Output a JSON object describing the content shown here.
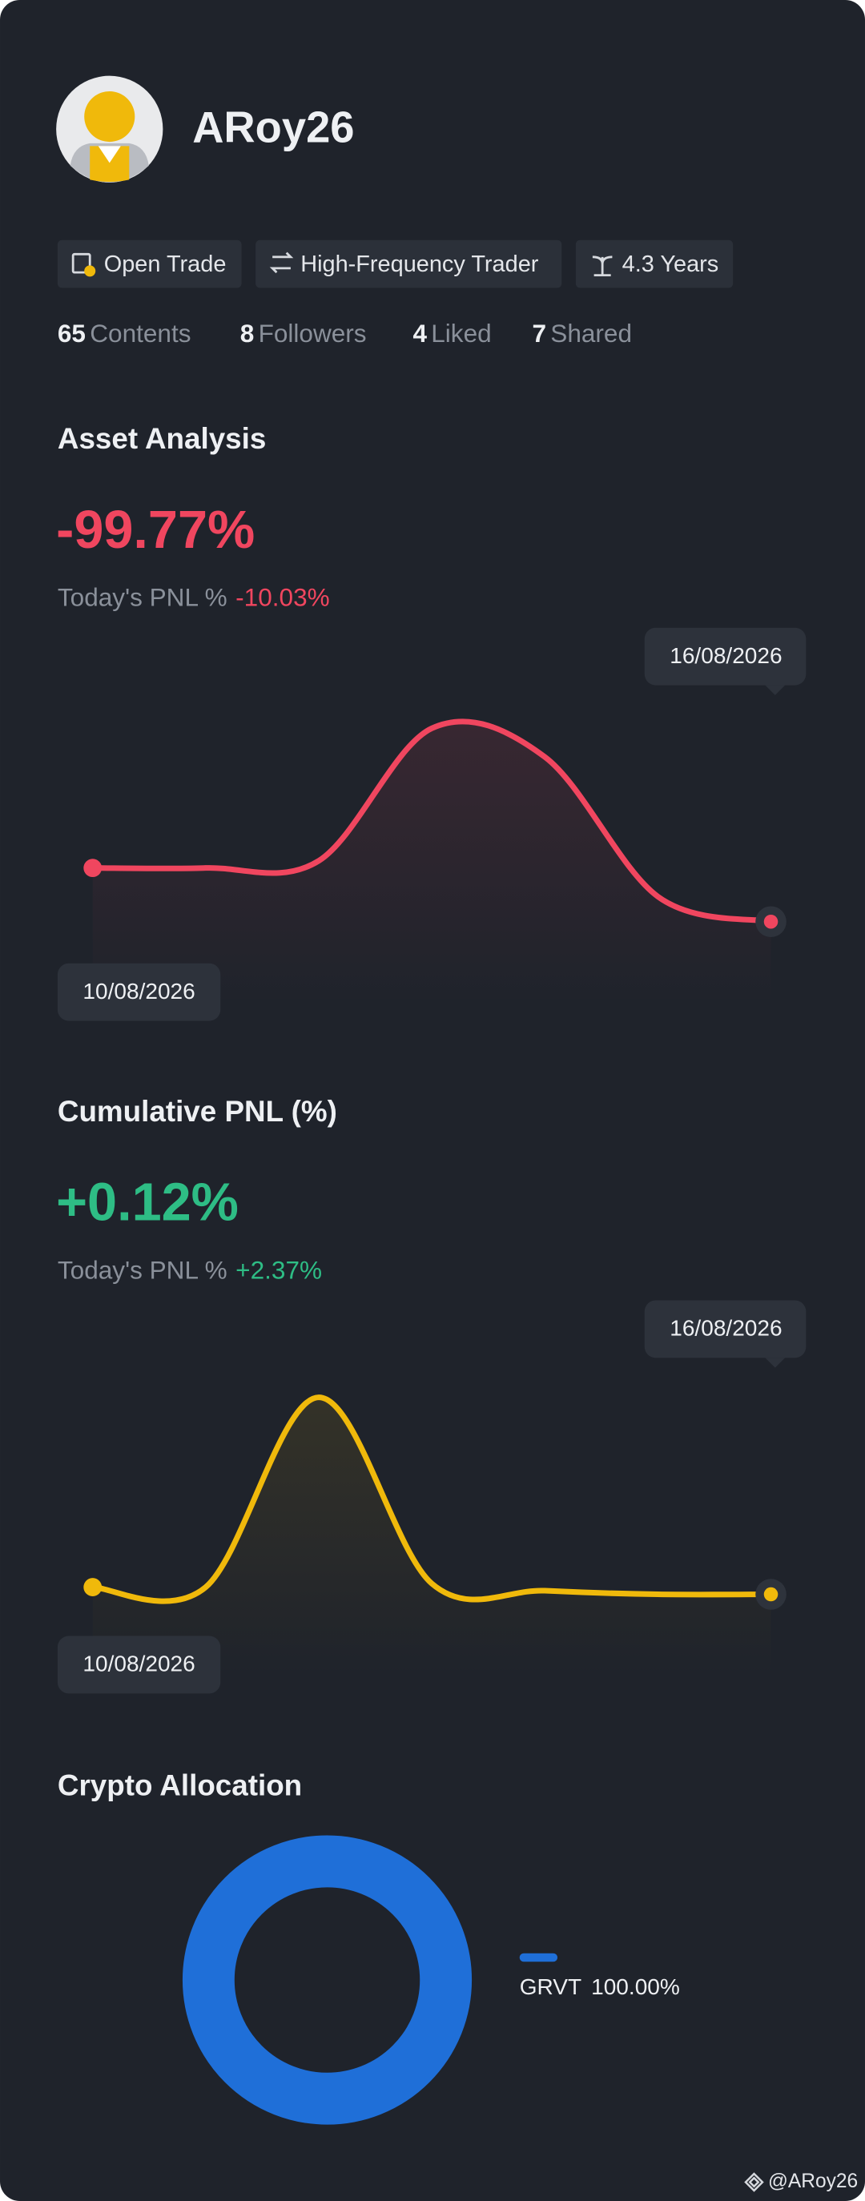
{
  "profile": {
    "username": "ARoy26",
    "tags": [
      "Open Trade",
      "High-Frequency Trader",
      "4.3 Years"
    ],
    "stats": [
      {
        "count": "65",
        "label": "Contents"
      },
      {
        "count": "8",
        "label": "Followers"
      },
      {
        "count": "4",
        "label": "Liked"
      },
      {
        "count": "7",
        "label": "Shared"
      }
    ]
  },
  "chart_data": [
    {
      "type": "line",
      "title": "Asset Analysis",
      "headline": "-99.77%",
      "headline_color": "#f0465f",
      "subtitle_label": "Today's PNL %",
      "subtitle_value": "-10.03%",
      "x": [
        "10/08/2026",
        null,
        null,
        null,
        null,
        null,
        "16/08/2026"
      ],
      "series": [
        {
          "color": "#f0465f",
          "values": [
            38,
            38,
            40,
            77,
            69,
            30,
            23
          ]
        }
      ],
      "ylim": [
        0,
        100
      ]
    },
    {
      "type": "line",
      "title": "Cumulative PNL (%)",
      "headline": "+0.12%",
      "headline_color": "#2ebd85",
      "subtitle_label": "Today's PNL %",
      "subtitle_value": "+2.37%",
      "x": [
        "10/08/2026",
        null,
        null,
        null,
        null,
        null,
        "16/08/2026"
      ],
      "series": [
        {
          "color": "#f0b90b",
          "values": [
            25,
            25,
            78,
            26,
            24,
            23,
            23
          ]
        }
      ],
      "ylim": [
        0,
        100
      ]
    },
    {
      "type": "pie",
      "title": "Crypto Allocation",
      "categories": [
        "GRVT"
      ],
      "values": [
        100
      ],
      "value_labels": [
        "100.00%"
      ],
      "colors": [
        "#1f6fd8"
      ],
      "hole": true
    }
  ],
  "watermark": "@ARoy26"
}
